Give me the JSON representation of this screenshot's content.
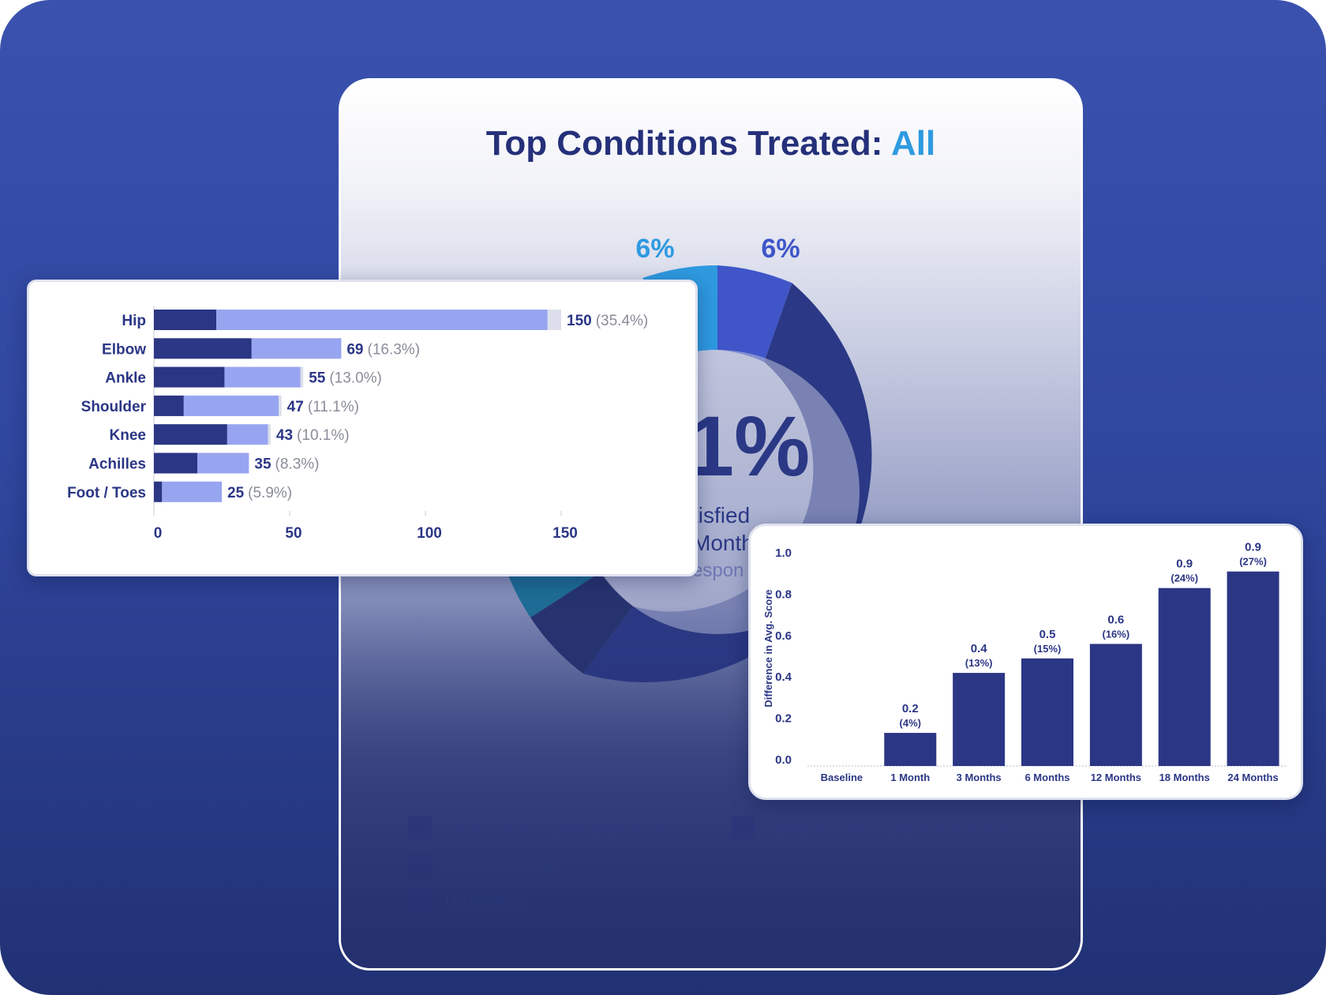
{
  "donut_card": {
    "title_main": "Top Conditions Treated:",
    "title_accent": "All",
    "segment_labels": [
      "6%",
      "6%"
    ],
    "center_value": "1%",
    "center_line1": "tisfied",
    "center_line2": "Month",
    "center_line3": "espon",
    "legend": [
      {
        "label": "Facet Joint Osteoarthritis"
      },
      {
        "label": "Tendon Tear (partial thickness)"
      },
      {
        "label": "Osteoarthritis"
      },
      {
        "label": "Tendinitis"
      }
    ],
    "colors": {
      "primary": "#2b3885",
      "light": "#2f9ae0",
      "mid": "#3f55c8",
      "teal": "#1e6d96"
    }
  },
  "chart_data": [
    {
      "type": "bar",
      "orientation": "horizontal",
      "stacked": true,
      "categories": [
        "Hip",
        "Elbow",
        "Ankle",
        "Shoulder",
        "Knee",
        "Achilles",
        "Foot / Toes"
      ],
      "series": [
        {
          "values": [
            23,
            36,
            26,
            11,
            27,
            16,
            3
          ],
          "color": "#2b3685"
        },
        {
          "values": [
            122,
            33,
            28,
            35,
            15,
            19,
            22
          ],
          "color": "#97a5f0"
        },
        {
          "values": [
            5,
            0,
            1,
            1,
            1,
            0,
            0
          ],
          "color": "#dcdfeb"
        }
      ],
      "totals": [
        150,
        69,
        55,
        47,
        43,
        35,
        25
      ],
      "value_labels": [
        "150",
        "69",
        "55",
        "47",
        "43",
        "35",
        "25"
      ],
      "percent_labels": [
        "(35.4%)",
        "(16.3%)",
        "(13.0%)",
        "(11.1%)",
        "(10.1%)",
        "(8.3%)",
        "(5.9%)"
      ],
      "xticks": [
        "0",
        "50",
        "100",
        "150"
      ],
      "xlim": [
        0,
        190
      ]
    },
    {
      "type": "bar",
      "categories": [
        "Baseline",
        "1 Month",
        "3 Months",
        "6 Months",
        "12 Months",
        "18 Months",
        "24 Months"
      ],
      "values": [
        0,
        0.16,
        0.45,
        0.52,
        0.59,
        0.86,
        0.94
      ],
      "value_labels": [
        "",
        "0.2",
        "0.4",
        "0.5",
        "0.6",
        "0.9",
        "0.9"
      ],
      "percent_labels": [
        "",
        "(4%)",
        "(13%)",
        "(15%)",
        "(16%)",
        "(24%)",
        "(27%)"
      ],
      "ylabel": "Difference in Avg. Score",
      "yticks": [
        "0.0",
        "0.2",
        "0.4",
        "0.6",
        "0.8",
        "1.0"
      ],
      "ylim": [
        0,
        1.0
      ],
      "color": "#2b3685"
    }
  ]
}
